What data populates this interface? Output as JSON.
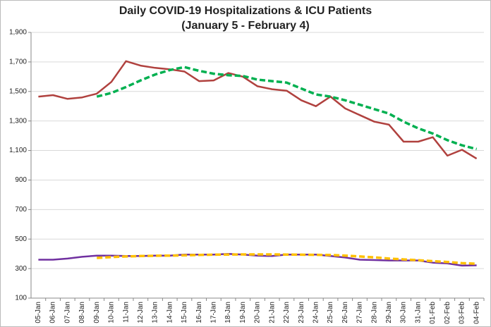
{
  "chart_data": {
    "type": "line",
    "title": "Daily COVID-19 Hospitalizations & ICU Patients",
    "subtitle": "(January 5 - February 4)",
    "categories": [
      "05-Jan",
      "06-Jan",
      "07-Jan",
      "08-Jan",
      "09-Jan",
      "10-Jan",
      "11-Jan",
      "12-Jan",
      "13-Jan",
      "14-Jan",
      "15-Jan",
      "16-Jan",
      "17-Jan",
      "18-Jan",
      "19-Jan",
      "20-Jan",
      "21-Jan",
      "22-Jan",
      "23-Jan",
      "24-Jan",
      "25-Jan",
      "26-Jan",
      "27-Jan",
      "28-Jan",
      "29-Jan",
      "30-Jan",
      "31-Jan",
      "01-Feb",
      "02-Feb",
      "03-Feb",
      "04-Feb"
    ],
    "series": [
      {
        "color": "#b0413e",
        "style": "solid",
        "values": [
          1465,
          1475,
          1450,
          1460,
          1485,
          1565,
          1705,
          1675,
          1660,
          1650,
          1635,
          1570,
          1575,
          1625,
          1600,
          1535,
          1515,
          1505,
          1440,
          1400,
          1465,
          1385,
          1340,
          1295,
          1275,
          1160,
          1160,
          1190,
          1065,
          1105,
          1045
        ]
      },
      {
        "color": "#00b050",
        "style": "dashed",
        "values": [
          null,
          null,
          null,
          null,
          1465,
          1490,
          1530,
          1575,
          1615,
          1645,
          1665,
          1640,
          1620,
          1610,
          1605,
          1580,
          1570,
          1560,
          1520,
          1480,
          1465,
          1440,
          1410,
          1380,
          1350,
          1295,
          1250,
          1215,
          1170,
          1135,
          1110
        ]
      },
      {
        "color": "#7030a0",
        "style": "solid",
        "values": [
          360,
          360,
          368,
          380,
          388,
          388,
          385,
          385,
          388,
          388,
          395,
          395,
          395,
          400,
          395,
          388,
          385,
          395,
          395,
          395,
          385,
          375,
          360,
          358,
          355,
          355,
          355,
          340,
          335,
          320,
          322
        ]
      },
      {
        "color": "#ffc000",
        "style": "dashed",
        "values": [
          null,
          null,
          null,
          null,
          372,
          378,
          382,
          385,
          387,
          388,
          390,
          392,
          394,
          395,
          396,
          396,
          396,
          395,
          394,
          393,
          392,
          388,
          382,
          376,
          368,
          362,
          357,
          350,
          345,
          337,
          333
        ]
      }
    ],
    "ylim": [
      100,
      1900
    ],
    "yticks": [
      100,
      300,
      500,
      700,
      900,
      {
        "value": 1100,
        "label": "1,100"
      },
      {
        "value": 1300,
        "label": "1,300"
      },
      {
        "value": 1500,
        "label": "1,500"
      },
      {
        "value": 1700,
        "label": "1,700"
      },
      {
        "value": 1900,
        "label": "1,900"
      }
    ],
    "grid": true
  }
}
